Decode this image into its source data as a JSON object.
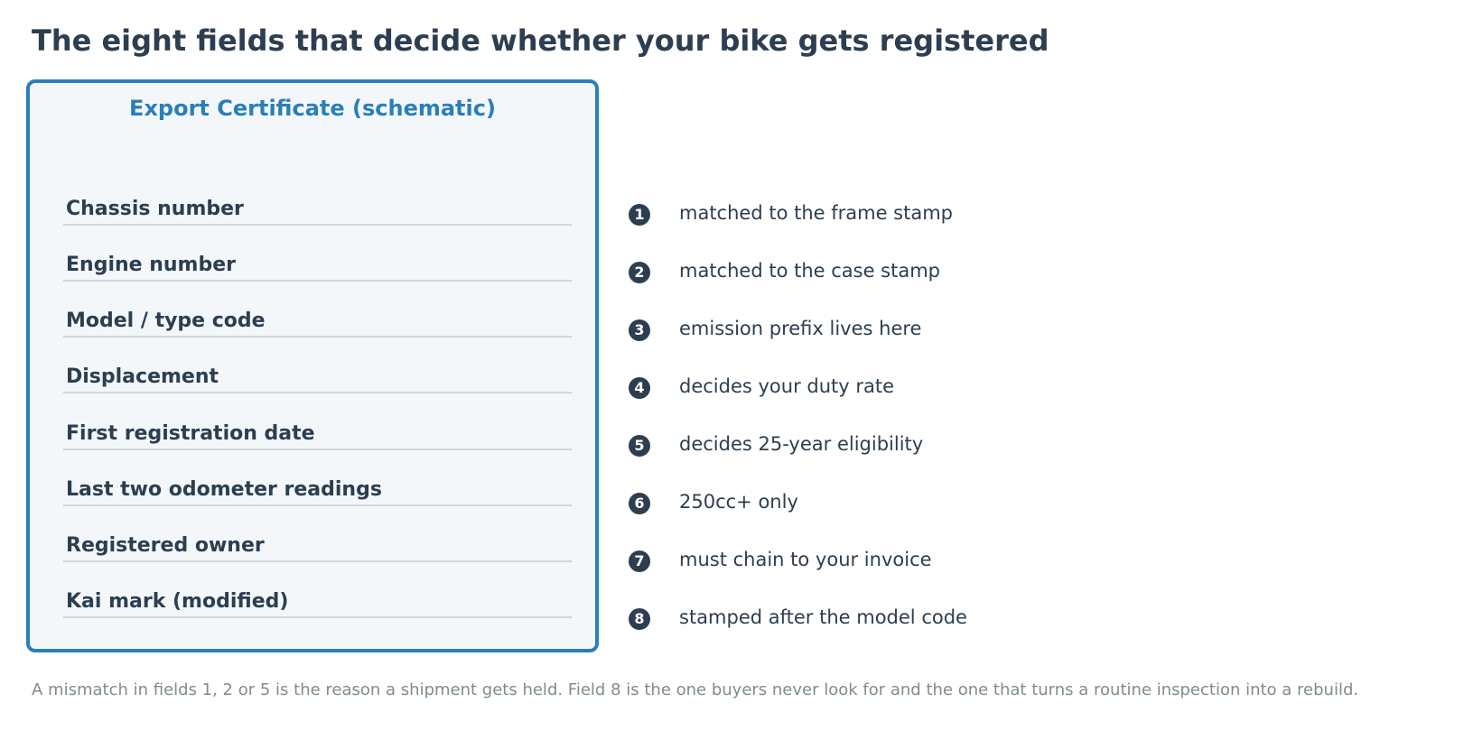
{
  "title": "The eight fields that decide whether your bike gets registered",
  "certificate": {
    "heading": "Export Certificate (schematic)",
    "fields": [
      {
        "number": "1",
        "label": "Chassis number",
        "note": "matched to the frame stamp"
      },
      {
        "number": "2",
        "label": "Engine number",
        "note": "matched to the case stamp"
      },
      {
        "number": "3",
        "label": "Model / type code",
        "note": "emission prefix lives here"
      },
      {
        "number": "4",
        "label": "Displacement",
        "note": "decides your duty rate"
      },
      {
        "number": "5",
        "label": "First registration date",
        "note": "decides 25-year eligibility"
      },
      {
        "number": "6",
        "label": "Last two odometer readings",
        "note": "250cc+ only"
      },
      {
        "number": "7",
        "label": "Registered owner",
        "note": "must chain to your invoice"
      },
      {
        "number": "8",
        "label": "Kai mark (modified)",
        "note": "stamped after the model code"
      }
    ]
  },
  "footnote": "A mismatch in fields 1, 2 or 5 is the reason a shipment gets held. Field 8 is the one buyers never look for and the one that turns a routine inspection into a rebuild.",
  "colors": {
    "accent": "#2a7fb8",
    "text": "#2c3e50",
    "panel": "#f3f7fa",
    "muted": "#7f8c8d"
  }
}
